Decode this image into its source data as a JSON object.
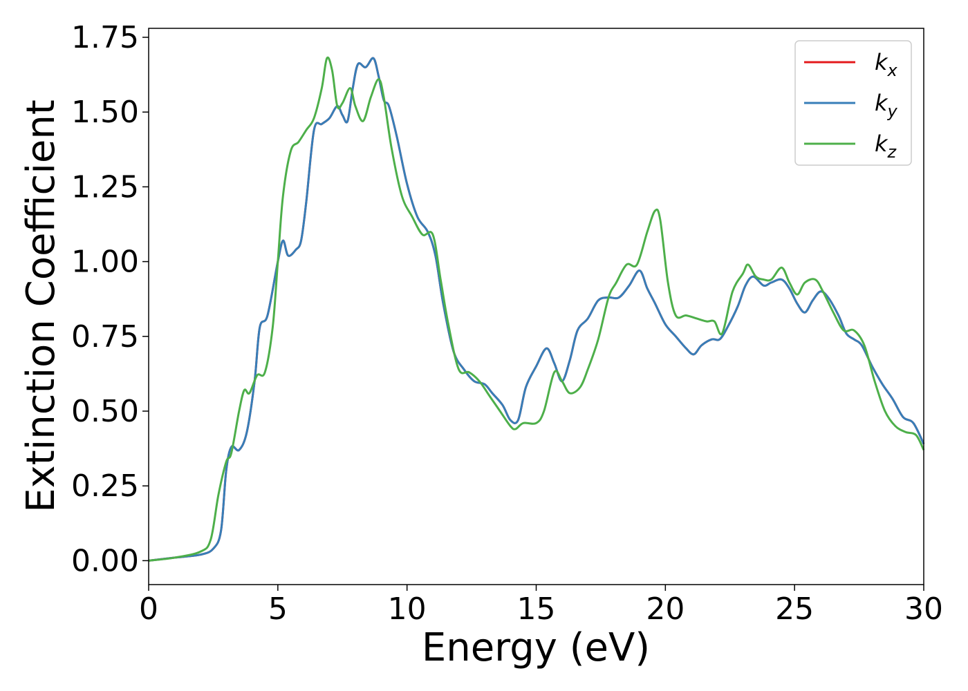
{
  "chart_data": {
    "type": "line",
    "xlabel": "Energy (eV)",
    "ylabel": "Extinction Coefficient",
    "xlim": [
      0,
      30
    ],
    "ylim": [
      -0.08,
      1.78
    ],
    "x_ticks": [
      "0",
      "5",
      "10",
      "15",
      "20",
      "25",
      "30"
    ],
    "y_ticks": [
      "0.00",
      "0.25",
      "0.50",
      "0.75",
      "1.00",
      "1.25",
      "1.50",
      "1.75"
    ],
    "grid": false,
    "legend_position": "top-right",
    "series": [
      {
        "name": "k_x",
        "label_base": "k",
        "label_sub": "x",
        "color": "#e41a1c",
        "x": [
          0,
          1,
          2,
          2.5,
          2.8,
          3.0,
          3.2,
          3.5,
          3.8,
          4.1,
          4.3,
          4.6,
          5.0,
          5.2,
          5.4,
          5.7,
          5.9,
          6.1,
          6.4,
          6.7,
          7.0,
          7.3,
          7.5,
          7.7,
          7.9,
          8.1,
          8.4,
          8.7,
          8.9,
          9.1,
          9.3,
          9.6,
          10.0,
          10.4,
          10.8,
          11.1,
          11.4,
          11.8,
          12.2,
          12.6,
          13.0,
          13.3,
          13.7,
          14.0,
          14.3,
          14.6,
          15.0,
          15.4,
          15.7,
          16.0,
          16.3,
          16.6,
          17.0,
          17.4,
          17.8,
          18.2,
          18.6,
          19.0,
          19.3,
          19.6,
          20.0,
          20.4,
          20.8,
          21.1,
          21.4,
          21.8,
          22.1,
          22.4,
          22.8,
          23.1,
          23.4,
          23.8,
          24.1,
          24.5,
          24.8,
          25.1,
          25.4,
          25.7,
          26.0,
          26.3,
          26.7,
          27.0,
          27.3,
          27.6,
          28.0,
          28.4,
          28.8,
          29.2,
          29.6,
          30.0
        ],
        "values": [
          0,
          0.01,
          0.02,
          0.04,
          0.1,
          0.3,
          0.38,
          0.37,
          0.43,
          0.6,
          0.78,
          0.82,
          1.0,
          1.07,
          1.02,
          1.04,
          1.07,
          1.2,
          1.44,
          1.46,
          1.48,
          1.52,
          1.49,
          1.47,
          1.58,
          1.66,
          1.65,
          1.68,
          1.62,
          1.54,
          1.52,
          1.42,
          1.26,
          1.15,
          1.1,
          1.02,
          0.86,
          0.7,
          0.64,
          0.6,
          0.59,
          0.56,
          0.52,
          0.47,
          0.47,
          0.58,
          0.65,
          0.71,
          0.66,
          0.6,
          0.67,
          0.77,
          0.81,
          0.87,
          0.88,
          0.88,
          0.92,
          0.97,
          0.91,
          0.86,
          0.79,
          0.75,
          0.71,
          0.69,
          0.72,
          0.74,
          0.74,
          0.78,
          0.85,
          0.92,
          0.95,
          0.92,
          0.93,
          0.94,
          0.91,
          0.86,
          0.83,
          0.87,
          0.9,
          0.88,
          0.82,
          0.76,
          0.74,
          0.72,
          0.65,
          0.59,
          0.54,
          0.48,
          0.46,
          0.39
        ]
      },
      {
        "name": "k_y",
        "label_base": "k",
        "label_sub": "y",
        "color": "#377eb8",
        "x": [
          0,
          1,
          2,
          2.5,
          2.8,
          3.0,
          3.2,
          3.5,
          3.8,
          4.1,
          4.3,
          4.6,
          5.0,
          5.2,
          5.4,
          5.7,
          5.9,
          6.1,
          6.4,
          6.7,
          7.0,
          7.3,
          7.5,
          7.7,
          7.9,
          8.1,
          8.4,
          8.7,
          8.9,
          9.1,
          9.3,
          9.6,
          10.0,
          10.4,
          10.8,
          11.1,
          11.4,
          11.8,
          12.2,
          12.6,
          13.0,
          13.3,
          13.7,
          14.0,
          14.3,
          14.6,
          15.0,
          15.4,
          15.7,
          16.0,
          16.3,
          16.6,
          17.0,
          17.4,
          17.8,
          18.2,
          18.6,
          19.0,
          19.3,
          19.6,
          20.0,
          20.4,
          20.8,
          21.1,
          21.4,
          21.8,
          22.1,
          22.4,
          22.8,
          23.1,
          23.4,
          23.8,
          24.1,
          24.5,
          24.8,
          25.1,
          25.4,
          25.7,
          26.0,
          26.3,
          26.7,
          27.0,
          27.3,
          27.6,
          28.0,
          28.4,
          28.8,
          29.2,
          29.6,
          30.0
        ],
        "values": [
          0,
          0.01,
          0.02,
          0.04,
          0.1,
          0.3,
          0.38,
          0.37,
          0.43,
          0.6,
          0.78,
          0.82,
          1.0,
          1.07,
          1.02,
          1.04,
          1.07,
          1.2,
          1.44,
          1.46,
          1.48,
          1.52,
          1.49,
          1.47,
          1.58,
          1.66,
          1.65,
          1.68,
          1.62,
          1.54,
          1.52,
          1.42,
          1.26,
          1.15,
          1.1,
          1.02,
          0.86,
          0.7,
          0.64,
          0.6,
          0.59,
          0.56,
          0.52,
          0.47,
          0.47,
          0.58,
          0.65,
          0.71,
          0.66,
          0.6,
          0.67,
          0.77,
          0.81,
          0.87,
          0.88,
          0.88,
          0.92,
          0.97,
          0.91,
          0.86,
          0.79,
          0.75,
          0.71,
          0.69,
          0.72,
          0.74,
          0.74,
          0.78,
          0.85,
          0.92,
          0.95,
          0.92,
          0.93,
          0.94,
          0.91,
          0.86,
          0.83,
          0.87,
          0.9,
          0.88,
          0.82,
          0.76,
          0.74,
          0.72,
          0.65,
          0.59,
          0.54,
          0.48,
          0.46,
          0.39
        ]
      },
      {
        "name": "k_z",
        "label_base": "k",
        "label_sub": "z",
        "color": "#4daf4a",
        "x": [
          0,
          1,
          2,
          2.4,
          2.7,
          3.0,
          3.2,
          3.5,
          3.7,
          3.9,
          4.2,
          4.5,
          4.8,
          5.0,
          5.2,
          5.5,
          5.8,
          6.1,
          6.4,
          6.7,
          6.9,
          7.1,
          7.3,
          7.5,
          7.8,
          8.0,
          8.3,
          8.6,
          8.9,
          9.1,
          9.4,
          9.8,
          10.2,
          10.6,
          11.0,
          11.3,
          11.6,
          12.0,
          12.4,
          12.8,
          13.2,
          13.6,
          14.0,
          14.2,
          14.5,
          15.0,
          15.3,
          15.7,
          16.0,
          16.3,
          16.7,
          17.0,
          17.4,
          17.8,
          18.1,
          18.5,
          18.9,
          19.3,
          19.6,
          19.8,
          20.1,
          20.4,
          20.8,
          21.2,
          21.6,
          21.9,
          22.2,
          22.6,
          23.0,
          23.2,
          23.5,
          23.8,
          24.1,
          24.5,
          24.8,
          25.1,
          25.4,
          25.8,
          26.1,
          26.5,
          26.9,
          27.3,
          27.7,
          28.1,
          28.5,
          28.9,
          29.3,
          29.7,
          30.0
        ],
        "values": [
          0,
          0.01,
          0.03,
          0.07,
          0.22,
          0.33,
          0.36,
          0.5,
          0.57,
          0.56,
          0.62,
          0.63,
          0.78,
          1.0,
          1.22,
          1.37,
          1.4,
          1.44,
          1.48,
          1.58,
          1.68,
          1.64,
          1.52,
          1.53,
          1.58,
          1.52,
          1.47,
          1.55,
          1.61,
          1.55,
          1.38,
          1.22,
          1.15,
          1.09,
          1.09,
          0.94,
          0.79,
          0.64,
          0.63,
          0.6,
          0.55,
          0.5,
          0.45,
          0.44,
          0.46,
          0.46,
          0.5,
          0.63,
          0.6,
          0.56,
          0.58,
          0.64,
          0.74,
          0.88,
          0.93,
          0.99,
          0.99,
          1.1,
          1.17,
          1.14,
          0.93,
          0.82,
          0.82,
          0.81,
          0.8,
          0.8,
          0.76,
          0.9,
          0.96,
          0.99,
          0.95,
          0.94,
          0.94,
          0.98,
          0.93,
          0.89,
          0.93,
          0.94,
          0.9,
          0.83,
          0.77,
          0.77,
          0.72,
          0.6,
          0.5,
          0.45,
          0.43,
          0.42,
          0.37
        ]
      }
    ]
  }
}
